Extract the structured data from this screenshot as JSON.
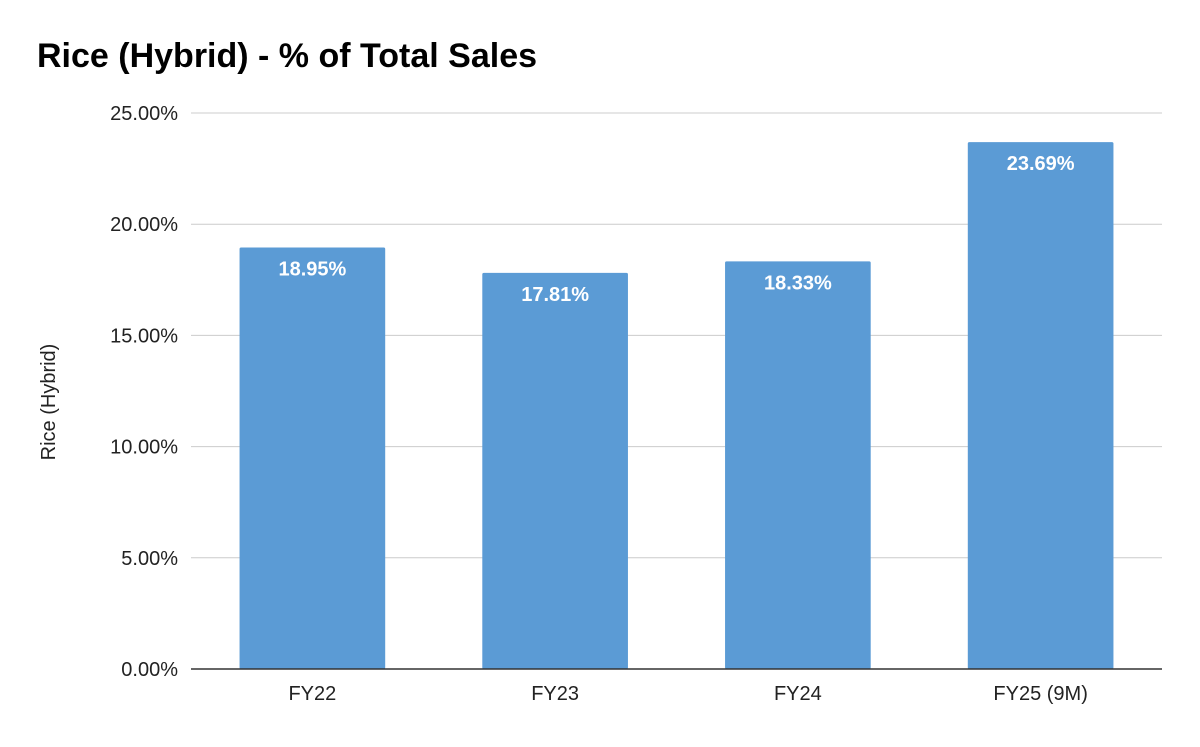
{
  "chart_data": {
    "type": "bar",
    "title": "Rice (Hybrid) - % of Total Sales",
    "xlabel": "",
    "ylabel": "Rice (Hybrid)",
    "categories": [
      "FY22",
      "FY23",
      "FY24",
      "FY25 (9M)"
    ],
    "series": [
      {
        "values": [
          18.95,
          17.81,
          18.33,
          23.69
        ],
        "data_labels": [
          "18.95%",
          "17.81%",
          "18.33%",
          "23.69%"
        ],
        "color": "#5b9bd5"
      }
    ],
    "ylim": [
      0,
      25
    ],
    "yticks": [
      0,
      5,
      10,
      15,
      20,
      25
    ],
    "ytick_labels": [
      "0.00%",
      "5.00%",
      "10.00%",
      "15.00%",
      "20.00%",
      "25.00%"
    ],
    "grid": true,
    "legend": "none",
    "colors": {
      "bar": "#5b9bd5",
      "gridline": "#cccccc",
      "axis": "#333333",
      "text": "#222222",
      "data_label": "#ffffff"
    }
  }
}
